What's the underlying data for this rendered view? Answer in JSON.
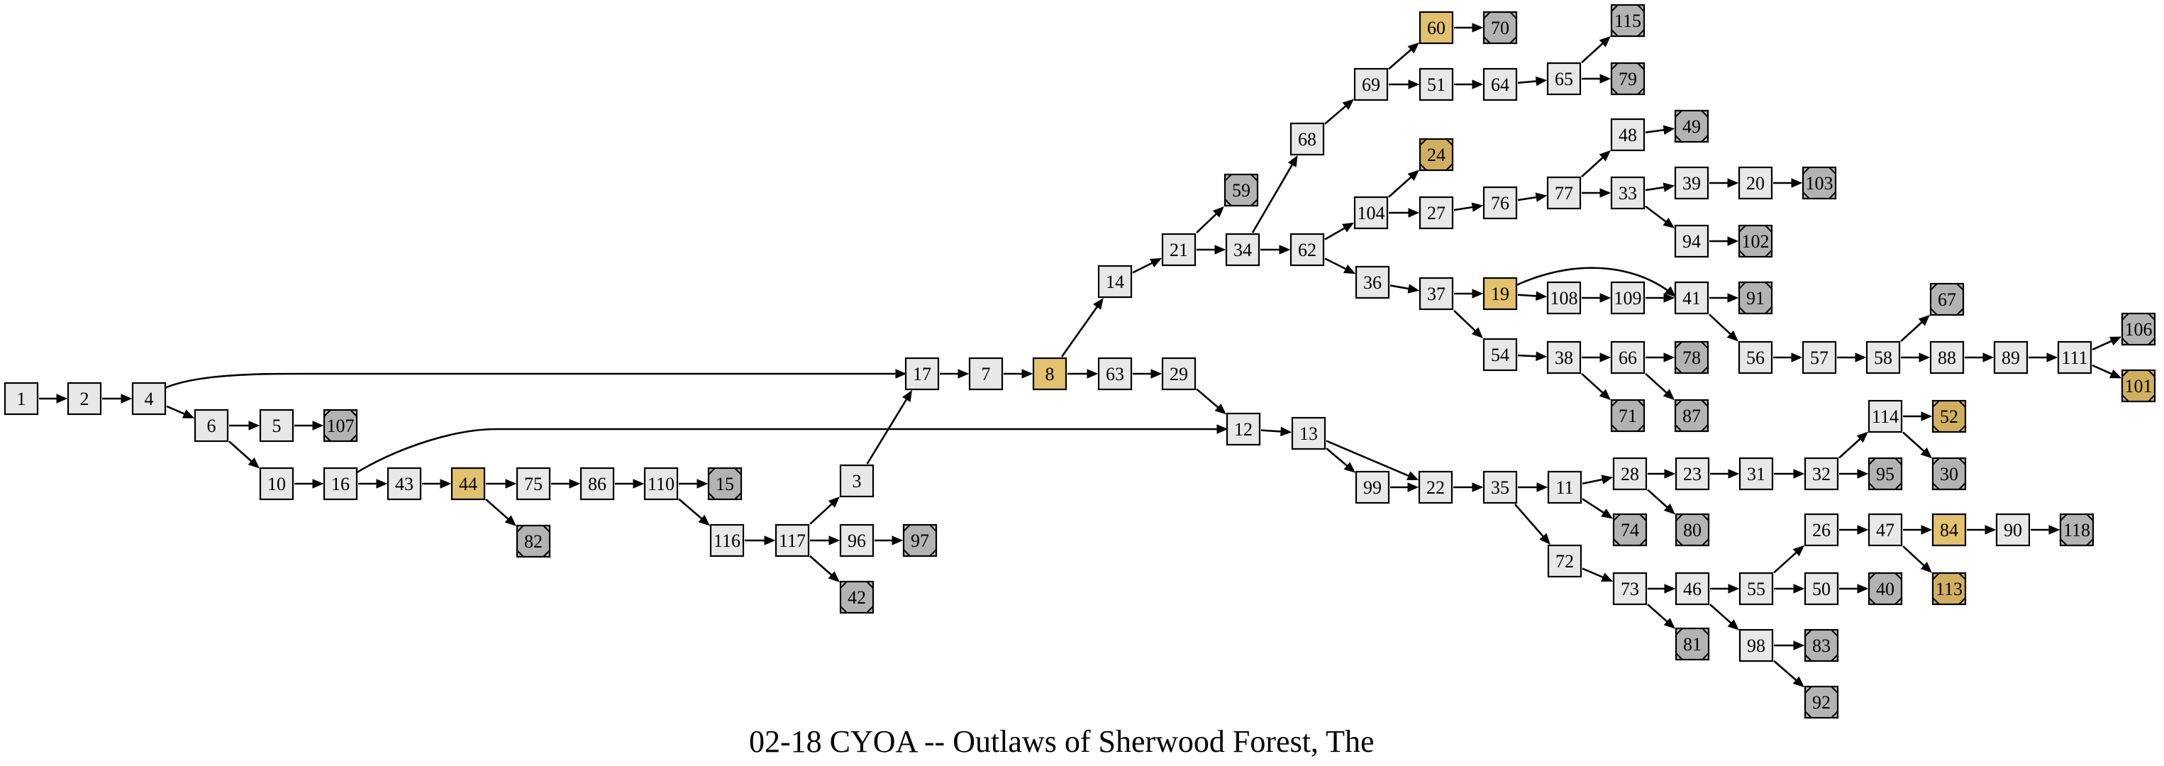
{
  "title": "02-18 CYOA -- Outlaws of Sherwood Forest, The",
  "colors": {
    "normal": "#e8e8e8",
    "highlight": "#e2c26e",
    "ending": "#b3b3b3",
    "goodEnding": "#d0b060",
    "stroke": "#000000"
  },
  "nodes": [
    {
      "id": "1",
      "kind": "normal"
    },
    {
      "id": "2",
      "kind": "normal"
    },
    {
      "id": "4",
      "kind": "normal"
    },
    {
      "id": "6",
      "kind": "normal"
    },
    {
      "id": "5",
      "kind": "normal"
    },
    {
      "id": "107",
      "kind": "ending"
    },
    {
      "id": "10",
      "kind": "normal"
    },
    {
      "id": "16",
      "kind": "normal"
    },
    {
      "id": "43",
      "kind": "normal"
    },
    {
      "id": "44",
      "kind": "highlight"
    },
    {
      "id": "82",
      "kind": "ending"
    },
    {
      "id": "75",
      "kind": "normal"
    },
    {
      "id": "86",
      "kind": "normal"
    },
    {
      "id": "110",
      "kind": "normal"
    },
    {
      "id": "15",
      "kind": "ending"
    },
    {
      "id": "116",
      "kind": "normal"
    },
    {
      "id": "117",
      "kind": "normal"
    },
    {
      "id": "3",
      "kind": "normal"
    },
    {
      "id": "96",
      "kind": "normal"
    },
    {
      "id": "97",
      "kind": "ending"
    },
    {
      "id": "42",
      "kind": "ending"
    },
    {
      "id": "17",
      "kind": "normal"
    },
    {
      "id": "7",
      "kind": "normal"
    },
    {
      "id": "8",
      "kind": "highlight"
    },
    {
      "id": "14",
      "kind": "normal"
    },
    {
      "id": "63",
      "kind": "normal"
    },
    {
      "id": "29",
      "kind": "normal"
    },
    {
      "id": "12",
      "kind": "normal"
    },
    {
      "id": "13",
      "kind": "normal"
    },
    {
      "id": "99",
      "kind": "normal"
    },
    {
      "id": "22",
      "kind": "normal"
    },
    {
      "id": "35",
      "kind": "normal"
    },
    {
      "id": "11",
      "kind": "normal"
    },
    {
      "id": "72",
      "kind": "normal"
    },
    {
      "id": "28",
      "kind": "normal"
    },
    {
      "id": "74",
      "kind": "ending"
    },
    {
      "id": "23",
      "kind": "normal"
    },
    {
      "id": "80",
      "kind": "ending"
    },
    {
      "id": "31",
      "kind": "normal"
    },
    {
      "id": "32",
      "kind": "normal"
    },
    {
      "id": "114",
      "kind": "normal"
    },
    {
      "id": "95",
      "kind": "ending"
    },
    {
      "id": "52",
      "kind": "goodEnding"
    },
    {
      "id": "30",
      "kind": "ending"
    },
    {
      "id": "73",
      "kind": "normal"
    },
    {
      "id": "81",
      "kind": "ending"
    },
    {
      "id": "46",
      "kind": "normal"
    },
    {
      "id": "55",
      "kind": "normal"
    },
    {
      "id": "98",
      "kind": "normal"
    },
    {
      "id": "26",
      "kind": "normal"
    },
    {
      "id": "50",
      "kind": "normal"
    },
    {
      "id": "40",
      "kind": "ending"
    },
    {
      "id": "47",
      "kind": "normal"
    },
    {
      "id": "84",
      "kind": "highlight"
    },
    {
      "id": "113",
      "kind": "goodEnding"
    },
    {
      "id": "90",
      "kind": "normal"
    },
    {
      "id": "118",
      "kind": "ending"
    },
    {
      "id": "83",
      "kind": "ending"
    },
    {
      "id": "92",
      "kind": "ending"
    },
    {
      "id": "21",
      "kind": "normal"
    },
    {
      "id": "59",
      "kind": "ending"
    },
    {
      "id": "34",
      "kind": "normal"
    },
    {
      "id": "68",
      "kind": "normal"
    },
    {
      "id": "69",
      "kind": "normal"
    },
    {
      "id": "60",
      "kind": "highlight"
    },
    {
      "id": "70",
      "kind": "ending"
    },
    {
      "id": "51",
      "kind": "normal"
    },
    {
      "id": "64",
      "kind": "normal"
    },
    {
      "id": "65",
      "kind": "normal"
    },
    {
      "id": "115",
      "kind": "ending"
    },
    {
      "id": "79",
      "kind": "ending"
    },
    {
      "id": "62",
      "kind": "normal"
    },
    {
      "id": "104",
      "kind": "normal"
    },
    {
      "id": "24",
      "kind": "goodEnding"
    },
    {
      "id": "27",
      "kind": "normal"
    },
    {
      "id": "76",
      "kind": "normal"
    },
    {
      "id": "77",
      "kind": "normal"
    },
    {
      "id": "48",
      "kind": "normal"
    },
    {
      "id": "49",
      "kind": "ending"
    },
    {
      "id": "33",
      "kind": "normal"
    },
    {
      "id": "39",
      "kind": "normal"
    },
    {
      "id": "20",
      "kind": "normal"
    },
    {
      "id": "103",
      "kind": "ending"
    },
    {
      "id": "94",
      "kind": "normal"
    },
    {
      "id": "102",
      "kind": "ending"
    },
    {
      "id": "36",
      "kind": "normal"
    },
    {
      "id": "37",
      "kind": "normal"
    },
    {
      "id": "19",
      "kind": "highlight"
    },
    {
      "id": "108",
      "kind": "normal"
    },
    {
      "id": "109",
      "kind": "normal"
    },
    {
      "id": "41",
      "kind": "normal"
    },
    {
      "id": "91",
      "kind": "ending"
    },
    {
      "id": "56",
      "kind": "normal"
    },
    {
      "id": "57",
      "kind": "normal"
    },
    {
      "id": "58",
      "kind": "normal"
    },
    {
      "id": "67",
      "kind": "ending"
    },
    {
      "id": "88",
      "kind": "normal"
    },
    {
      "id": "89",
      "kind": "normal"
    },
    {
      "id": "111",
      "kind": "normal"
    },
    {
      "id": "106",
      "kind": "ending"
    },
    {
      "id": "101",
      "kind": "goodEnding"
    },
    {
      "id": "54",
      "kind": "normal"
    },
    {
      "id": "38",
      "kind": "normal"
    },
    {
      "id": "66",
      "kind": "normal"
    },
    {
      "id": "78",
      "kind": "ending"
    },
    {
      "id": "87",
      "kind": "ending"
    },
    {
      "id": "71",
      "kind": "ending"
    }
  ],
  "edges": [
    [
      "1",
      "2"
    ],
    [
      "2",
      "4"
    ],
    [
      "4",
      "6"
    ],
    [
      "4",
      "17"
    ],
    [
      "6",
      "5"
    ],
    [
      "5",
      "107"
    ],
    [
      "6",
      "10"
    ],
    [
      "10",
      "16"
    ],
    [
      "16",
      "43"
    ],
    [
      "16",
      "12"
    ],
    [
      "43",
      "44"
    ],
    [
      "44",
      "75"
    ],
    [
      "44",
      "82"
    ],
    [
      "75",
      "86"
    ],
    [
      "86",
      "110"
    ],
    [
      "110",
      "15"
    ],
    [
      "110",
      "116"
    ],
    [
      "116",
      "117"
    ],
    [
      "117",
      "3"
    ],
    [
      "117",
      "96"
    ],
    [
      "117",
      "42"
    ],
    [
      "96",
      "97"
    ],
    [
      "3",
      "17"
    ],
    [
      "17",
      "7"
    ],
    [
      "7",
      "8"
    ],
    [
      "8",
      "14"
    ],
    [
      "8",
      "63"
    ],
    [
      "63",
      "29"
    ],
    [
      "29",
      "12"
    ],
    [
      "12",
      "13"
    ],
    [
      "13",
      "99"
    ],
    [
      "13",
      "22"
    ],
    [
      "99",
      "22"
    ],
    [
      "22",
      "35"
    ],
    [
      "35",
      "11"
    ],
    [
      "35",
      "72"
    ],
    [
      "11",
      "28"
    ],
    [
      "11",
      "74"
    ],
    [
      "28",
      "23"
    ],
    [
      "28",
      "80"
    ],
    [
      "23",
      "31"
    ],
    [
      "31",
      "32"
    ],
    [
      "32",
      "114"
    ],
    [
      "32",
      "95"
    ],
    [
      "114",
      "52"
    ],
    [
      "114",
      "30"
    ],
    [
      "72",
      "73"
    ],
    [
      "73",
      "81"
    ],
    [
      "73",
      "46"
    ],
    [
      "46",
      "55"
    ],
    [
      "46",
      "98"
    ],
    [
      "55",
      "26"
    ],
    [
      "55",
      "50"
    ],
    [
      "50",
      "40"
    ],
    [
      "26",
      "47"
    ],
    [
      "47",
      "84"
    ],
    [
      "47",
      "113"
    ],
    [
      "84",
      "90"
    ],
    [
      "90",
      "118"
    ],
    [
      "98",
      "83"
    ],
    [
      "98",
      "92"
    ],
    [
      "14",
      "21"
    ],
    [
      "21",
      "59"
    ],
    [
      "21",
      "34"
    ],
    [
      "34",
      "68"
    ],
    [
      "34",
      "62"
    ],
    [
      "68",
      "69"
    ],
    [
      "69",
      "60"
    ],
    [
      "69",
      "51"
    ],
    [
      "60",
      "70"
    ],
    [
      "51",
      "64"
    ],
    [
      "64",
      "65"
    ],
    [
      "65",
      "115"
    ],
    [
      "65",
      "79"
    ],
    [
      "62",
      "104"
    ],
    [
      "62",
      "36"
    ],
    [
      "104",
      "24"
    ],
    [
      "104",
      "27"
    ],
    [
      "27",
      "76"
    ],
    [
      "76",
      "77"
    ],
    [
      "77",
      "48"
    ],
    [
      "77",
      "33"
    ],
    [
      "48",
      "49"
    ],
    [
      "33",
      "39"
    ],
    [
      "33",
      "94"
    ],
    [
      "39",
      "20"
    ],
    [
      "20",
      "103"
    ],
    [
      "94",
      "102"
    ],
    [
      "36",
      "37"
    ],
    [
      "37",
      "19"
    ],
    [
      "37",
      "54"
    ],
    [
      "19",
      "108"
    ],
    [
      "19",
      "41"
    ],
    [
      "108",
      "109"
    ],
    [
      "109",
      "41"
    ],
    [
      "41",
      "91"
    ],
    [
      "41",
      "56"
    ],
    [
      "56",
      "57"
    ],
    [
      "57",
      "58"
    ],
    [
      "58",
      "67"
    ],
    [
      "58",
      "88"
    ],
    [
      "88",
      "89"
    ],
    [
      "89",
      "111"
    ],
    [
      "111",
      "106"
    ],
    [
      "111",
      "101"
    ],
    [
      "54",
      "38"
    ],
    [
      "38",
      "66"
    ],
    [
      "38",
      "71"
    ],
    [
      "66",
      "78"
    ],
    [
      "66",
      "87"
    ]
  ]
}
